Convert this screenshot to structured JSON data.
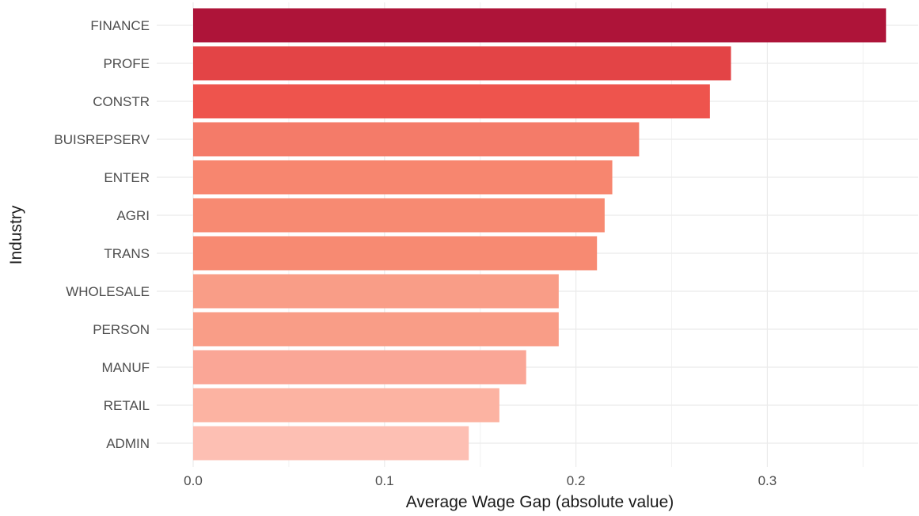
{
  "chart_data": {
    "type": "bar",
    "orientation": "horizontal",
    "xlabel": "Average Wage Gap (absolute value)",
    "ylabel": "Industry",
    "xlim": [
      0,
      0.3625
    ],
    "x_ticks": [
      {
        "value": 0.0,
        "label": "0.0"
      },
      {
        "value": 0.1,
        "label": "0.1"
      },
      {
        "value": 0.2,
        "label": "0.2"
      },
      {
        "value": 0.3,
        "label": "0.3"
      }
    ],
    "grid": true,
    "legend": "none",
    "categories": [
      "FINANCE",
      "PROFE",
      "CONSTR",
      "BUISREPSERV",
      "ENTER",
      "AGRI",
      "TRANS",
      "WHOLESALE",
      "PERSON",
      "MANUF",
      "RETAIL",
      "ADMIN"
    ],
    "values": [
      0.362,
      0.281,
      0.27,
      0.233,
      0.219,
      0.215,
      0.211,
      0.191,
      0.191,
      0.174,
      0.16,
      0.144
    ],
    "colors": [
      "#AE1439",
      "#E34446",
      "#EE544D",
      "#F47B69",
      "#F7866F",
      "#F78A72",
      "#F78A72",
      "#F99D87",
      "#F99D87",
      "#FAA696",
      "#FCB3A2",
      "#FDBFB3"
    ]
  }
}
